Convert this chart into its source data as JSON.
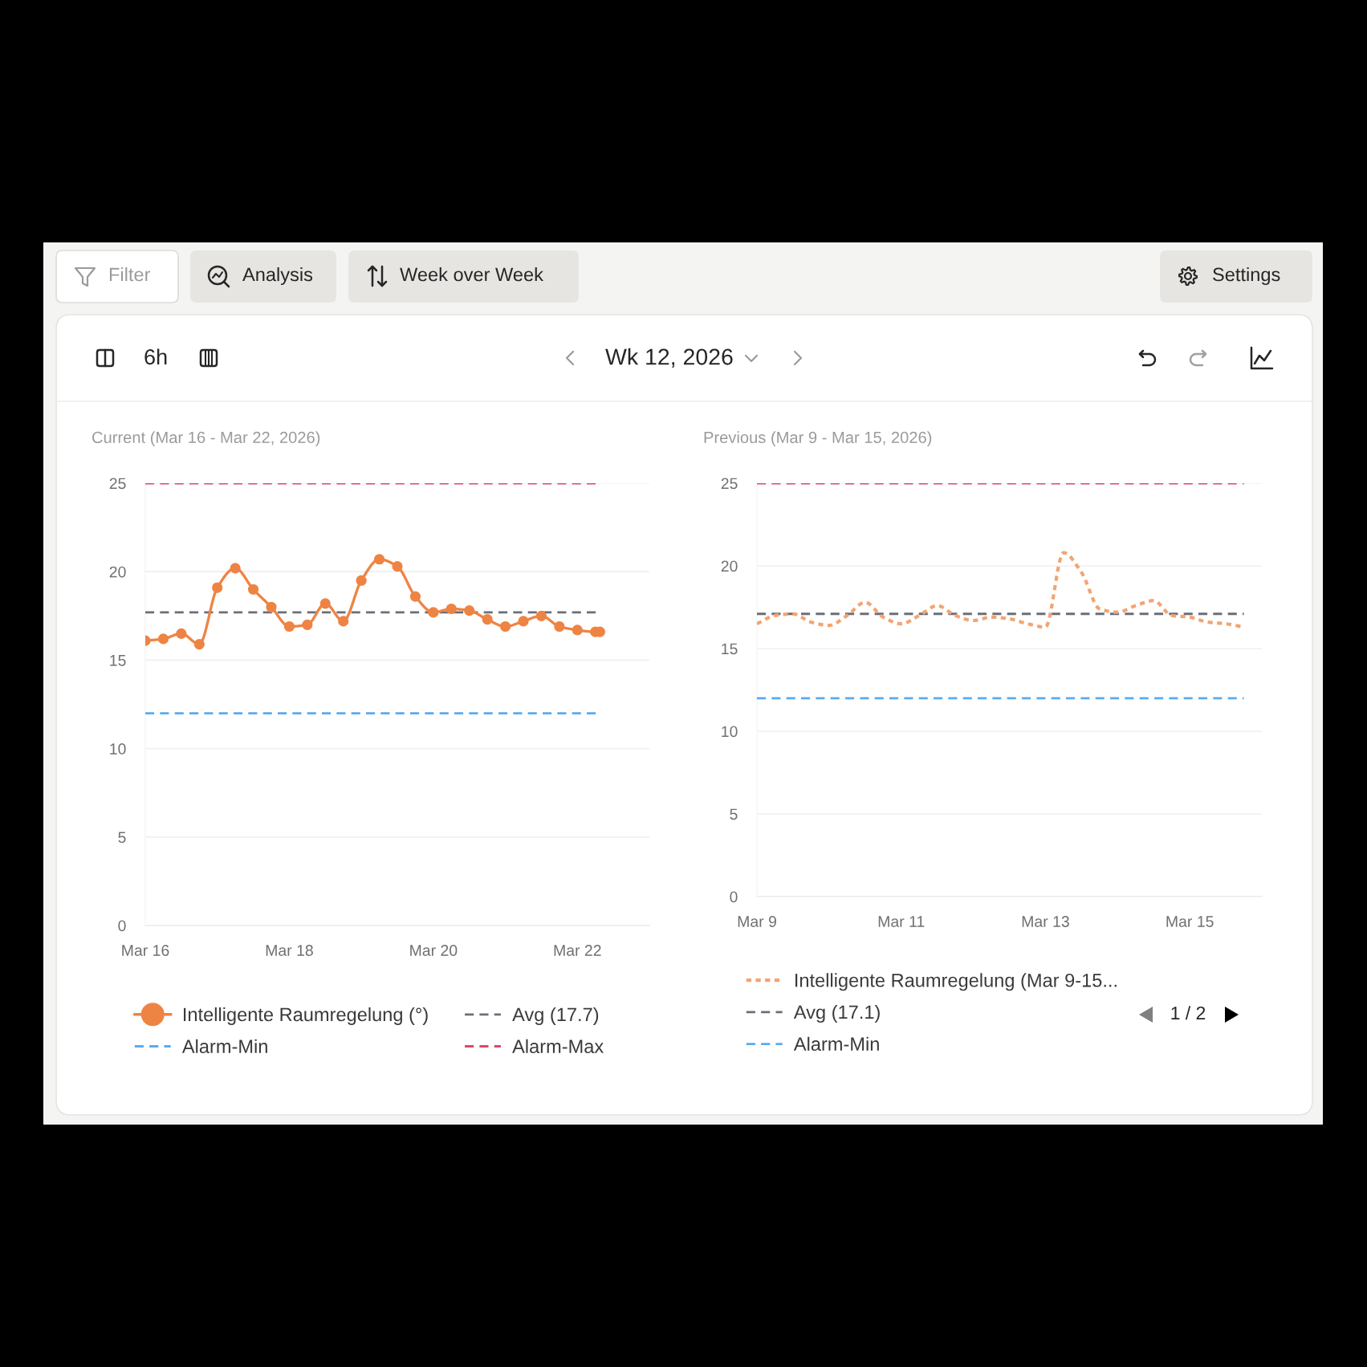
{
  "chart_data": [
    {
      "type": "other",
      "annotations": [
        "Filter",
        "Analysis",
        "Week over Week",
        "Settings",
        "6h",
        "Wk 12, 2026"
      ]
    },
    {
      "type": "line",
      "title": "Current (Mar 16 - Mar 22, 2026)",
      "x": [
        "2026-03-16T00:00",
        "2026-03-16T06:00",
        "2026-03-16T12:00",
        "2026-03-16T18:00",
        "2026-03-17T00:00",
        "2026-03-17T06:00",
        "2026-03-17T12:00",
        "2026-03-17T18:00",
        "2026-03-18T00:00",
        "2026-03-18T06:00",
        "2026-03-18T12:00",
        "2026-03-18T18:00",
        "2026-03-19T00:00",
        "2026-03-19T06:00",
        "2026-03-19T12:00",
        "2026-03-19T18:00",
        "2026-03-20T00:00",
        "2026-03-20T06:00",
        "2026-03-20T12:00",
        "2026-03-20T18:00",
        "2026-03-21T00:00",
        "2026-03-21T06:00",
        "2026-03-21T12:00",
        "2026-03-21T18:00",
        "2026-03-22T00:00",
        "2026-03-22T06:00",
        "2026-03-22T07:30"
      ],
      "series": [
        {
          "name": "Intelligente Raumregelung (°)",
          "color": "#ee8444",
          "values": [
            16.1,
            16.2,
            16.5,
            15.9,
            19.1,
            20.2,
            19.0,
            18.0,
            16.9,
            17.0,
            18.2,
            17.2,
            19.5,
            20.7,
            20.3,
            18.6,
            17.7,
            17.9,
            17.8,
            17.3,
            16.9,
            17.2,
            17.5,
            16.9,
            16.7,
            16.6,
            16.6
          ]
        }
      ],
      "xlim": [
        "2026-03-16",
        "2026-03-23"
      ],
      "xticks": [
        {
          "value": "2026-03-16",
          "label": "Mar 16"
        },
        {
          "value": "2026-03-18",
          "label": "Mar 18"
        },
        {
          "value": "2026-03-20",
          "label": "Mar 20"
        },
        {
          "value": "2026-03-22",
          "label": "Mar 22"
        }
      ],
      "ylim": [
        0,
        25
      ],
      "yticks": [
        0,
        5,
        10,
        15,
        20,
        25
      ],
      "grid": "y",
      "legend": "bottom",
      "marker": "circle",
      "line_style": "solid",
      "ref_lines": [
        {
          "axis": "y",
          "value": 17.7,
          "label": "Avg (17.7)",
          "color": "#6b6e78",
          "line_style": "dashed"
        },
        {
          "axis": "y",
          "value": 12,
          "label": "Alarm-Min",
          "color": "#5aaaf0",
          "line_style": "dashed"
        },
        {
          "axis": "y",
          "value": 25,
          "label": "Alarm-Max",
          "color": "#e0456b",
          "line_style": "dashed"
        }
      ]
    },
    {
      "type": "line",
      "title": "Previous (Mar 9 - Mar 15, 2026)",
      "x": [
        "2026-03-09T00:00",
        "2026-03-09T06:00",
        "2026-03-09T12:00",
        "2026-03-09T18:00",
        "2026-03-10T00:00",
        "2026-03-10T06:00",
        "2026-03-10T12:00",
        "2026-03-10T18:00",
        "2026-03-11T00:00",
        "2026-03-11T06:00",
        "2026-03-11T12:00",
        "2026-03-11T18:00",
        "2026-03-12T00:00",
        "2026-03-12T06:00",
        "2026-03-12T12:00",
        "2026-03-12T18:00",
        "2026-03-13T00:00",
        "2026-03-13T06:00",
        "2026-03-13T12:00",
        "2026-03-13T18:00",
        "2026-03-14T00:00",
        "2026-03-14T06:00",
        "2026-03-14T12:00",
        "2026-03-14T18:00",
        "2026-03-15T00:00",
        "2026-03-15T06:00",
        "2026-03-15T12:00",
        "2026-03-15T18:00"
      ],
      "series": [
        {
          "name": "Intelligente Raumregelung (Mar 9-15...",
          "color": "#f2a472",
          "values": [
            16.5,
            17.0,
            17.1,
            16.6,
            16.4,
            17.0,
            17.8,
            16.9,
            16.5,
            17.0,
            17.6,
            17.0,
            16.7,
            16.9,
            16.8,
            16.5,
            16.3,
            20.8,
            19.6,
            17.4,
            17.2,
            17.6,
            17.9,
            17.0,
            16.9,
            16.6,
            16.5,
            16.3
          ]
        }
      ],
      "xlim": [
        "2026-03-09",
        "2026-03-16"
      ],
      "xticks": [
        {
          "value": "2026-03-09",
          "label": "Mar 9"
        },
        {
          "value": "2026-03-11",
          "label": "Mar 11"
        },
        {
          "value": "2026-03-13",
          "label": "Mar 13"
        },
        {
          "value": "2026-03-15",
          "label": "Mar 15"
        }
      ],
      "ylim": [
        0,
        25
      ],
      "yticks": [
        0,
        5,
        10,
        15,
        20,
        25
      ],
      "grid": "y",
      "legend": "bottom",
      "line_style": "dotted",
      "ref_lines": [
        {
          "axis": "y",
          "value": 17.1,
          "label": "Avg (17.1)",
          "color": "#6b6e78",
          "line_style": "dashed"
        },
        {
          "axis": "y",
          "value": 12,
          "label": "Alarm-Min",
          "color": "#5aaaf0",
          "line_style": "dashed"
        },
        {
          "axis": "y",
          "value": 25,
          "label": null,
          "color": "#e0456b",
          "line_style": "dashed"
        }
      ],
      "annotations": [
        "1 / 2"
      ]
    }
  ]
}
